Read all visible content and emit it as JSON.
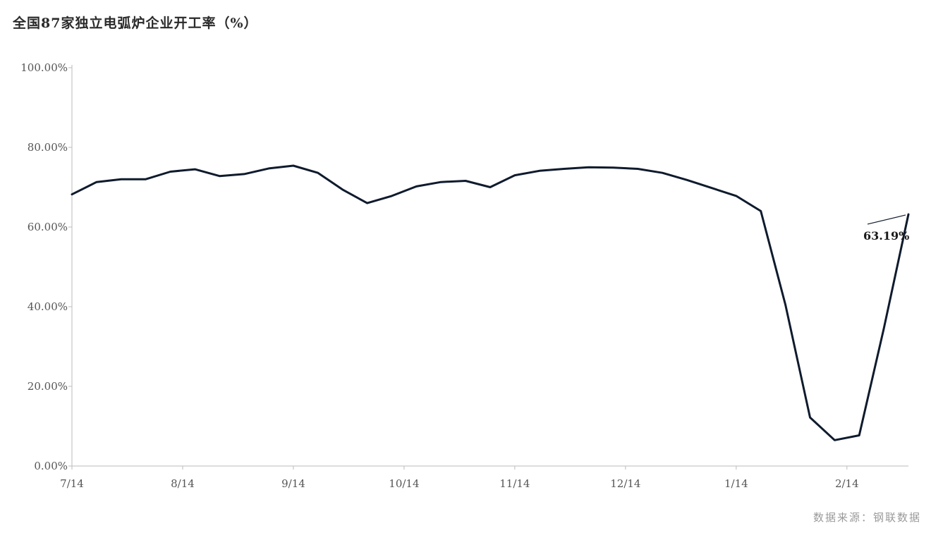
{
  "title": "全国87家独立电弧炉企业开工率（%）",
  "source": "数据来源：钢联数据",
  "colors": {
    "line": "#0f1b2d",
    "axis": "#bbbbbb",
    "tick_text": "#555555"
  },
  "chart_data": {
    "type": "line",
    "title": "全国87家独立电弧炉企业开工率（%）",
    "xlabel": "",
    "ylabel": "",
    "ylim": [
      0,
      100
    ],
    "yticks": [
      0,
      20,
      40,
      60,
      80,
      100
    ],
    "ytick_labels": [
      "0.00%",
      "20.00%",
      "40.00%",
      "60.00%",
      "80.00%",
      "100.00%"
    ],
    "grid": false,
    "xtick_labels": [
      "7/14",
      "8/14",
      "9/14",
      "10/14",
      "11/14",
      "12/14",
      "1/14",
      "2/14"
    ],
    "xtick_index": [
      0,
      4.5,
      9,
      13.5,
      18,
      22.5,
      27,
      31.5
    ],
    "series": [
      {
        "values": [
          68.2,
          71.3,
          72.0,
          72.0,
          73.9,
          74.5,
          72.8,
          73.3,
          74.7,
          75.4,
          73.6,
          69.4,
          66.0,
          67.8,
          70.2,
          71.3,
          71.6,
          70.0,
          73.0,
          74.1,
          74.6,
          75.0,
          74.9,
          74.6,
          73.6,
          71.8,
          69.8,
          67.8,
          64.0,
          40.5,
          12.2,
          6.5,
          7.7,
          34.5,
          63.19
        ]
      }
    ],
    "annotations": [
      {
        "text": "63.19%",
        "point_index": 34
      }
    ]
  }
}
